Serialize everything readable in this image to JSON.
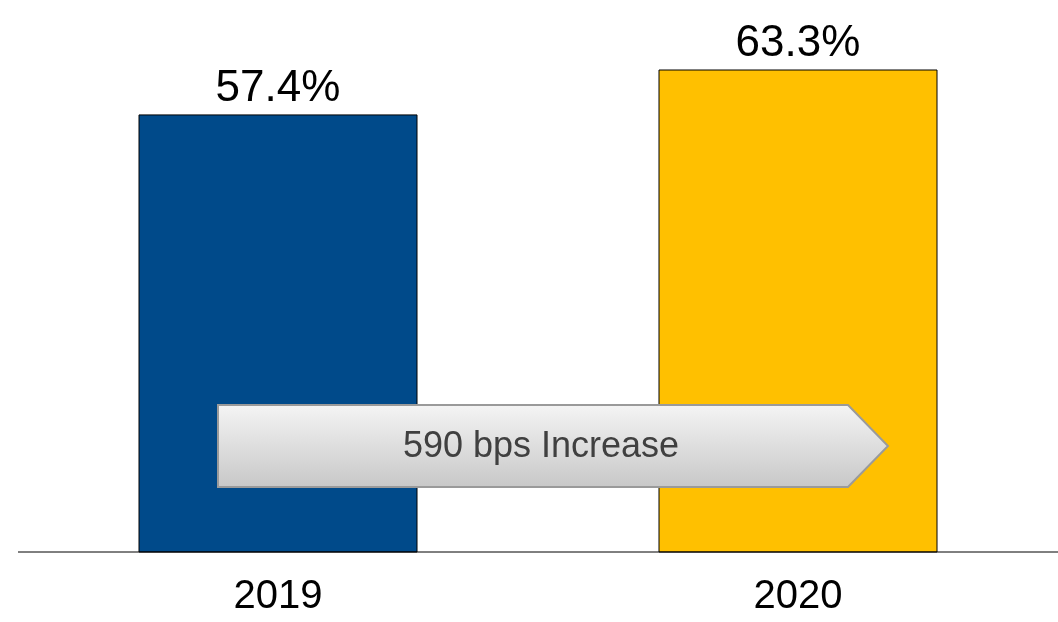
{
  "chart_data": {
    "type": "bar",
    "categories": [
      "2019",
      "2020"
    ],
    "values": [
      57.4,
      63.3
    ],
    "colors": [
      "#004a8a",
      "#ffc000"
    ],
    "value_labels": [
      "57.4%",
      "63.3%"
    ],
    "tick_labels": "x",
    "annotations": [
      "590 bps Increase"
    ]
  }
}
